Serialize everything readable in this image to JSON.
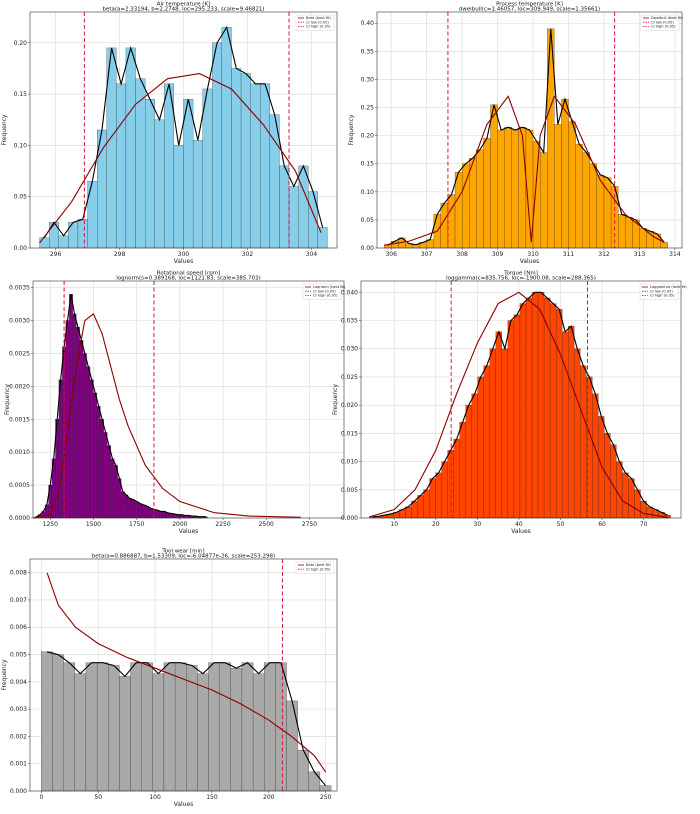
{
  "chart_data": [
    {
      "type": "histogram",
      "title": "Air temperature [K]",
      "subtitle": "beta(a=2.33194, b=2.2748, loc=295.233, scale=9.46821)",
      "xlabel": "Values",
      "ylabel": "Frequency",
      "xlim": [
        295.2,
        304.8
      ],
      "ylim": [
        0,
        0.23
      ],
      "xticks": [
        296,
        298,
        300,
        302,
        304
      ],
      "yticks": [
        0.0,
        0.05,
        0.1,
        0.15,
        0.2
      ],
      "ytick_decimals": 2,
      "grid": true,
      "legend_position": "top-right",
      "bar_color": "#87ceeb",
      "bin_start": 295.5,
      "bin_width": 0.3,
      "values": [
        0.01,
        0.025,
        0.012,
        0.025,
        0.028,
        0.065,
        0.115,
        0.195,
        0.16,
        0.195,
        0.165,
        0.145,
        0.125,
        0.16,
        0.1,
        0.145,
        0.105,
        0.155,
        0.2,
        0.215,
        0.175,
        0.17,
        0.16,
        0.16,
        0.13,
        0.08,
        0.06,
        0.08,
        0.055,
        0.02
      ],
      "fit_line": {
        "name": "Beta (best fit)",
        "color": "#8b0000",
        "x": [
          295.5,
          296.5,
          297.5,
          298.5,
          299.5,
          300.5,
          301.5,
          302.5,
          303.5,
          304.3
        ],
        "y": [
          0.005,
          0.045,
          0.098,
          0.14,
          0.165,
          0.17,
          0.155,
          0.12,
          0.075,
          0.015
        ]
      },
      "ci_lines": [
        {
          "name": "CI low (0.05)",
          "x": 296.9,
          "color": "#dc143c"
        },
        {
          "name": "CI high (0.95)",
          "x": 303.3,
          "color": "#dc143c"
        }
      ]
    },
    {
      "type": "histogram",
      "title": "Process temperature [K]",
      "subtitle": "dweibull(c=1.46057, loc=309.949, scale=1.35661)",
      "xlabel": "Values",
      "ylabel": "Frequency",
      "xlim": [
        305.6,
        314.2
      ],
      "ylim": [
        0,
        0.42
      ],
      "xticks": [
        306,
        307,
        308,
        309,
        310,
        311,
        312,
        313,
        314
      ],
      "yticks": [
        0.0,
        0.05,
        0.1,
        0.15,
        0.2,
        0.25,
        0.3,
        0.35,
        0.4
      ],
      "ytick_decimals": 2,
      "grid": true,
      "legend_position": "top-right",
      "bar_color": "#ffa500",
      "bin_start": 305.8,
      "bin_width": 0.2,
      "values": [
        0.005,
        0.012,
        0.018,
        0.008,
        0.006,
        0.01,
        0.015,
        0.06,
        0.08,
        0.095,
        0.135,
        0.15,
        0.16,
        0.175,
        0.195,
        0.255,
        0.21,
        0.215,
        0.21,
        0.215,
        0.21,
        0.19,
        0.17,
        0.39,
        0.22,
        0.265,
        0.225,
        0.185,
        0.17,
        0.15,
        0.13,
        0.125,
        0.11,
        0.06,
        0.055,
        0.05,
        0.035,
        0.03,
        0.025,
        0.01
      ],
      "fit_line": {
        "name": "Dweibull (best fit)",
        "color": "#8b0000",
        "x": [
          305.8,
          306.5,
          307.3,
          308.0,
          308.7,
          309.3,
          309.7,
          309.95,
          310.2,
          310.6,
          311.2,
          311.9,
          312.6,
          313.4,
          313.7
        ],
        "y": [
          0.005,
          0.012,
          0.03,
          0.1,
          0.22,
          0.27,
          0.2,
          0.01,
          0.2,
          0.27,
          0.22,
          0.12,
          0.06,
          0.02,
          0.01
        ]
      },
      "ci_lines": [
        {
          "name": "CI low (0.05)",
          "x": 307.6,
          "color": "#dc143c"
        },
        {
          "name": "CI high (0.95)",
          "x": 312.3,
          "color": "#dc143c"
        }
      ]
    },
    {
      "type": "histogram",
      "title": "Rotational speed [rpm]",
      "subtitle": "lognorm(s=0.389168, loc=1121.83, scale=385.703)",
      "xlabel": "Values",
      "ylabel": "Frequency",
      "xlim": [
        1150,
        2950
      ],
      "ylim": [
        0,
        0.0036
      ],
      "xticks": [
        1250,
        1500,
        1750,
        2000,
        2250,
        2500,
        2750
      ],
      "yticks": [
        0.0,
        0.0005,
        0.001,
        0.0015,
        0.002,
        0.0025,
        0.003,
        0.0035
      ],
      "ytick_decimals": 4,
      "grid": true,
      "legend_position": "top-right",
      "bar_color": "#800080",
      "bin_start": 1160,
      "bin_width": 20,
      "values": [
        2e-05,
        5e-05,
        0.0001,
        0.0002,
        0.0005,
        0.0009,
        0.0015,
        0.0021,
        0.0026,
        0.003,
        0.0034,
        0.0031,
        0.0029,
        0.0027,
        0.0025,
        0.0023,
        0.0021,
        0.0019,
        0.0017,
        0.0015,
        0.0013,
        0.0011,
        0.0009,
        0.0008,
        0.0006,
        0.0004,
        0.00035,
        0.0003,
        0.00028,
        0.00025,
        0.00022,
        0.0002,
        0.00018,
        0.00015,
        0.00013,
        0.00012,
        0.0001,
        0.0001,
        8e-05,
        7e-05,
        6e-05,
        5e-05,
        5e-05,
        4e-05,
        4e-05,
        3e-05,
        3e-05,
        2e-05,
        2e-05,
        2e-05
      ],
      "fit_line": {
        "name": "Lognorm (best fit)",
        "color": "#8b0000",
        "x": [
          1150,
          1250,
          1300,
          1350,
          1400,
          1450,
          1500,
          1550,
          1600,
          1650,
          1700,
          1800,
          1900,
          2000,
          2200,
          2400,
          2700
        ],
        "y": [
          0,
          5e-05,
          0.0004,
          0.0013,
          0.0023,
          0.003,
          0.0031,
          0.0028,
          0.0023,
          0.0018,
          0.0014,
          0.0008,
          0.00045,
          0.00025,
          8e-05,
          3e-05,
          1e-05
        ]
      },
      "ci_lines": [
        {
          "name": "CI low (0.05)",
          "x": 1330,
          "color": "#dc143c"
        },
        {
          "name": "CI high (0.95)",
          "x": 1850,
          "color": "#dc143c"
        }
      ]
    },
    {
      "type": "histogram",
      "title": "Torque [Nm]",
      "subtitle": "loggamma(c=835.756, loc=-1900.08, scale=288.365)",
      "xlabel": "Values",
      "ylabel": "Frequency",
      "xlim": [
        2,
        79
      ],
      "ylim": [
        0,
        0.042
      ],
      "xticks": [
        10,
        20,
        30,
        40,
        50,
        60,
        70
      ],
      "yticks": [
        0.0,
        0.005,
        0.01,
        0.015,
        0.02,
        0.025,
        0.03,
        0.035,
        0.04
      ],
      "ytick_decimals": 3,
      "grid": true,
      "legend_position": "top-right",
      "bar_color": "#ff4500",
      "bin_start": 4,
      "bin_width": 1.45,
      "values": [
        0.0002,
        0.0003,
        0.0005,
        0.0007,
        0.001,
        0.0015,
        0.002,
        0.003,
        0.004,
        0.005,
        0.007,
        0.008,
        0.01,
        0.012,
        0.014,
        0.017,
        0.02,
        0.022,
        0.025,
        0.027,
        0.03,
        0.033,
        0.03,
        0.035,
        0.036,
        0.038,
        0.039,
        0.04,
        0.04,
        0.039,
        0.038,
        0.037,
        0.033,
        0.034,
        0.03,
        0.027,
        0.025,
        0.022,
        0.018,
        0.015,
        0.013,
        0.01,
        0.008,
        0.007,
        0.005,
        0.003,
        0.002,
        0.0015,
        0.001,
        0.0005
      ],
      "fit_line": {
        "name": "Loggamma (best fit)",
        "color": "#8b0000",
        "x": [
          4,
          10,
          15,
          20,
          25,
          30,
          35,
          40,
          45,
          50,
          55,
          60,
          65,
          70,
          76
        ],
        "y": [
          0.0002,
          0.0015,
          0.005,
          0.012,
          0.022,
          0.031,
          0.038,
          0.04,
          0.037,
          0.029,
          0.019,
          0.009,
          0.003,
          0.0008,
          0.0001
        ]
      },
      "ci_lines": [
        {
          "name": "CI low (0.05)",
          "x": 23.7,
          "color": "#dc143c"
        },
        {
          "name": "CI high (0.95)",
          "x": 56.5,
          "color": "#dc143c"
        }
      ]
    },
    {
      "type": "histogram",
      "title": "Tool wear [min]",
      "subtitle": "beta(a=0.886887, b=1.53309, loc=-6.04877e-26, scale=253.298)",
      "xlabel": "Values",
      "ylabel": "Frequency",
      "xlim": [
        -10,
        260
      ],
      "ylim": [
        0,
        0.0085
      ],
      "xticks": [
        0,
        50,
        100,
        150,
        200,
        250
      ],
      "yticks": [
        0.0,
        0.001,
        0.002,
        0.003,
        0.004,
        0.005,
        0.006,
        0.007,
        0.008
      ],
      "ytick_decimals": 3,
      "grid": true,
      "legend_position": "top-right",
      "bar_color": "#a9a9a9",
      "bin_start": 0,
      "bin_width": 9.8,
      "values": [
        0.0051,
        0.005,
        0.0047,
        0.0043,
        0.0047,
        0.0047,
        0.0046,
        0.0042,
        0.0047,
        0.0047,
        0.0043,
        0.0047,
        0.0047,
        0.0046,
        0.0043,
        0.0047,
        0.0047,
        0.0045,
        0.0047,
        0.0043,
        0.0047,
        0.0047,
        0.0033,
        0.0015,
        0.0007,
        0.0002
      ],
      "fit_line": {
        "name": "Beta (best fit)",
        "color": "#8b0000",
        "x": [
          5,
          15,
          30,
          50,
          75,
          100,
          125,
          150,
          175,
          200,
          220,
          240,
          250
        ],
        "y": [
          0.008,
          0.0068,
          0.006,
          0.0054,
          0.0049,
          0.0045,
          0.0041,
          0.0037,
          0.0032,
          0.0026,
          0.002,
          0.0013,
          0.0007
        ]
      },
      "ci_lines": [
        {
          "name": "CI high (0.95)",
          "x": 212,
          "color": "#dc143c"
        }
      ]
    }
  ]
}
